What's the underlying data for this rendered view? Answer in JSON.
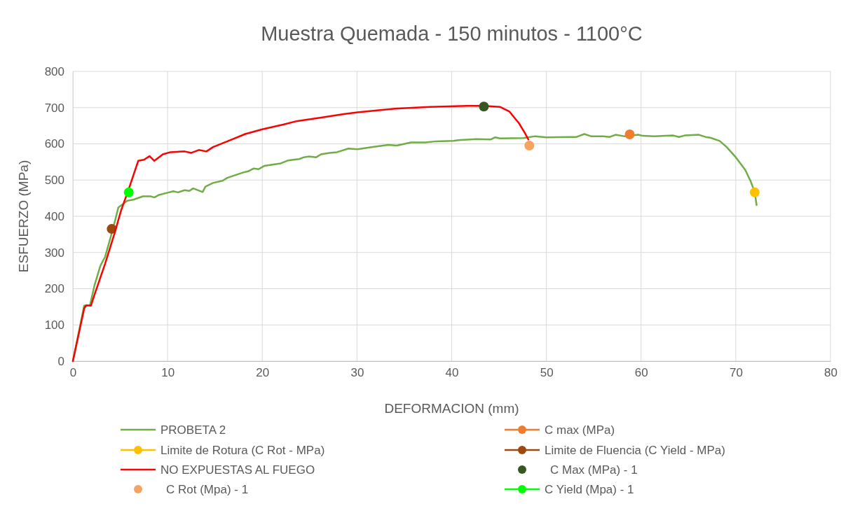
{
  "chart_data": {
    "type": "line",
    "title": "Muestra Quemada - 150 minutos - 1100°C",
    "xlabel": "DEFORMACION (mm)",
    "ylabel": "ESFUERZO (MPa)",
    "xlim": [
      0,
      80
    ],
    "xticks": [
      0,
      10,
      20,
      30,
      40,
      50,
      60,
      70,
      80
    ],
    "ylim": [
      0,
      800
    ],
    "yticks": [
      0,
      100,
      200,
      300,
      400,
      500,
      600,
      700,
      800
    ],
    "grid": true,
    "legend": "bottom",
    "marker": "none",
    "series": [
      {
        "name": "PROBETA 2",
        "color": "#70ad47",
        "line_style": "solid",
        "x": [
          0,
          1.19,
          1.8,
          2.3,
          2.9,
          3.4,
          3.9,
          4.3,
          4.8,
          5.76,
          6.4,
          7.4,
          8.2,
          8.6,
          9.1,
          10.0,
          10.6,
          11.1,
          11.8,
          12.3,
          12.7,
          13.7,
          14.0,
          14.8,
          15.8,
          16.3,
          18.0,
          18.5,
          19.1,
          19.6,
          20.2,
          21.95,
          22.7,
          23.9,
          24.4,
          24.9,
          25.7,
          26.2,
          27.1,
          27.9,
          29.1,
          30.05,
          31.8,
          33.3,
          34.2,
          35.7,
          37.2,
          38.4,
          40.2,
          40.7,
          42.6,
          44.1,
          44.6,
          45.1,
          47.6,
          48.8,
          50.0,
          52.5,
          53.2,
          54.0,
          54.7,
          56.0,
          56.7,
          57.3,
          58.2,
          59.7,
          60.2,
          61.4,
          63.4,
          64.0,
          64.6,
          66.1,
          66.8,
          67.3,
          68.3,
          69.0,
          70.0,
          71.0,
          71.6,
          72.0,
          72.2
        ],
        "values": [
          0,
          153,
          154,
          211,
          263,
          288,
          334,
          372,
          424,
          443,
          446,
          455,
          455,
          452,
          459,
          465,
          469,
          466,
          472,
          470,
          477,
          467,
          482,
          492,
          498,
          506,
          521,
          524,
          532,
          530,
          539,
          546,
          554,
          558,
          563,
          565,
          563,
          571,
          575,
          577,
          587,
          585,
          592,
          597,
          595,
          604,
          604,
          607,
          608,
          610,
          613,
          612,
          618,
          615,
          616,
          621,
          618,
          619,
          619,
          627,
          621,
          621,
          619,
          625,
          621,
          625,
          622,
          621,
          623,
          619,
          623,
          625,
          619,
          617,
          608,
          592,
          563,
          528,
          495,
          466,
          431
        ]
      },
      {
        "name": "C max (MPa)",
        "marker": "circle",
        "line_style": "solid",
        "color": "#ed7d31",
        "x": [
          58.8
        ],
        "values": [
          626
        ]
      },
      {
        "name": "Limite de Rotura (C Rot - MPa)",
        "marker": "circle",
        "line_style": "solid",
        "color": "#ffc000",
        "x": [
          72.0
        ],
        "values": [
          466
        ]
      },
      {
        "name": "Limite de Fluencia (C Yield - MPa)",
        "marker": "circle",
        "line_style": "solid",
        "color": "#9e480e",
        "x": [
          4.1
        ],
        "values": [
          365
        ]
      },
      {
        "name": "NO EXPUESTAS AL FUEGO",
        "color": "#ff0000",
        "line_style": "solid",
        "x": [
          0,
          1.2,
          1.4,
          1.9,
          2.3,
          3.4,
          4.4,
          5.1,
          5.9,
          6.9,
          7.5,
          8.1,
          8.6,
          9.5,
          10.3,
          11.8,
          12.5,
          13.3,
          14.1,
          14.8,
          16.5,
          18.2,
          20.0,
          22.2,
          23.7,
          26.1,
          28.6,
          30.05,
          34.0,
          37.7,
          41.6,
          43.4,
          45.1,
          46.1,
          47.1,
          47.7,
          48.1
        ],
        "values": [
          0,
          146,
          154,
          153,
          185,
          269,
          353,
          417,
          475,
          553,
          556,
          566,
          553,
          571,
          577,
          579,
          575,
          583,
          579,
          591,
          609,
          627,
          640,
          653,
          663,
          672,
          682,
          687,
          697,
          702,
          705,
          705,
          702,
          689,
          657,
          631,
          612
        ]
      },
      {
        "name": "C Max (MPa) - 1",
        "type": "scatter",
        "marker": "circle",
        "color": "#375623",
        "x": [
          43.4
        ],
        "values": [
          703
        ]
      },
      {
        "name": "C Rot (Mpa) - 1",
        "type": "scatter",
        "marker": "circle",
        "color": "#f4a460",
        "x": [
          48.2
        ],
        "values": [
          595
        ]
      },
      {
        "name": "C Yield (Mpa) - 1",
        "marker": "circle",
        "line_style": "solid",
        "color": "#00ff00",
        "x": [
          5.9
        ],
        "values": [
          466
        ]
      }
    ]
  }
}
